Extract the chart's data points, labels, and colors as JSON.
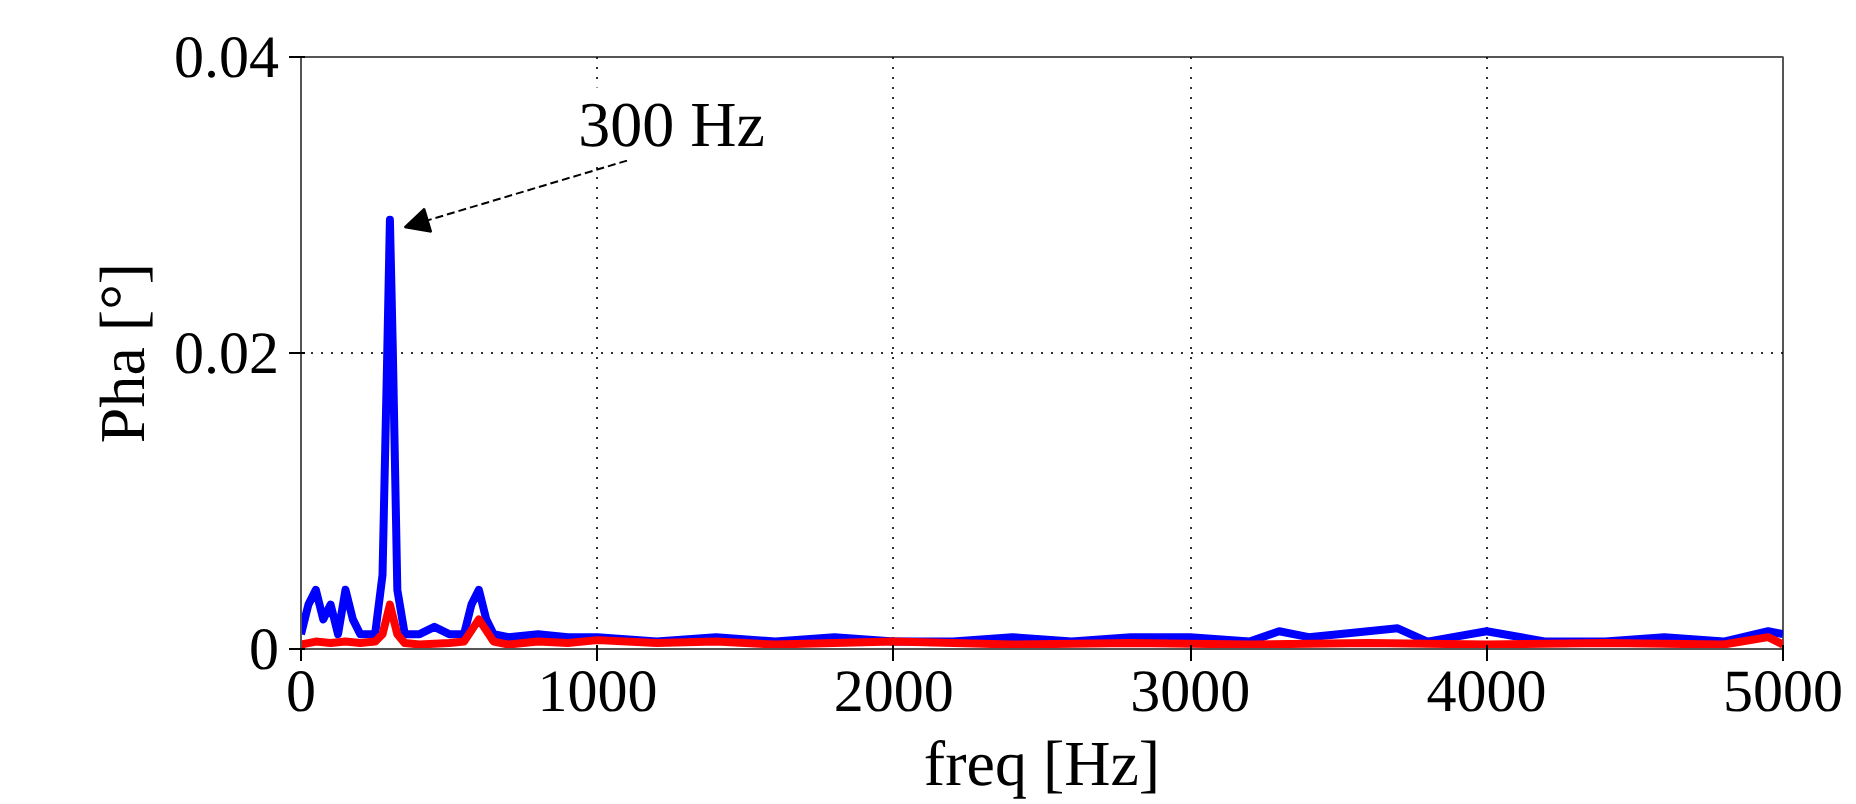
{
  "chart_data": {
    "type": "line",
    "xlabel": "freq [Hz]",
    "ylabel": "Pha [°]",
    "xlim": [
      0,
      5000
    ],
    "ylim": [
      0,
      0.04
    ],
    "xticks": [
      0,
      1000,
      2000,
      3000,
      4000,
      5000
    ],
    "yticks": [
      0,
      0.02,
      0.04
    ],
    "grid": true,
    "line_style": "solid",
    "marker": "none",
    "annotations": [
      {
        "text": "300 Hz",
        "x": 300,
        "y": 0.029
      }
    ],
    "series": [
      {
        "color": "#0000ff",
        "x": [
          0,
          25,
          50,
          75,
          100,
          125,
          150,
          175,
          200,
          225,
          250,
          275,
          290,
          300,
          310,
          325,
          350,
          400,
          450,
          500,
          550,
          575,
          600,
          625,
          650,
          700,
          800,
          900,
          1000,
          1200,
          1400,
          1600,
          1800,
          2000,
          2200,
          2400,
          2600,
          2800,
          3000,
          3200,
          3300,
          3400,
          3600,
          3700,
          3800,
          4000,
          4200,
          4400,
          4600,
          4800,
          4950,
          5000
        ],
        "values": [
          0.001,
          0.003,
          0.004,
          0.002,
          0.003,
          0.001,
          0.004,
          0.002,
          0.001,
          0.001,
          0.001,
          0.005,
          0.019,
          0.029,
          0.02,
          0.004,
          0.001,
          0.001,
          0.0015,
          0.001,
          0.001,
          0.003,
          0.004,
          0.002,
          0.001,
          0.0008,
          0.001,
          0.0008,
          0.0008,
          0.0005,
          0.0008,
          0.0005,
          0.0008,
          0.0005,
          0.0005,
          0.0008,
          0.0005,
          0.0008,
          0.0008,
          0.0005,
          0.0012,
          0.0008,
          0.0012,
          0.0014,
          0.0005,
          0.0012,
          0.0005,
          0.0005,
          0.0008,
          0.0005,
          0.0012,
          0.001
        ]
      },
      {
        "color": "#ff0000",
        "x": [
          0,
          50,
          100,
          150,
          200,
          250,
          275,
          300,
          325,
          350,
          400,
          500,
          550,
          600,
          650,
          700,
          800,
          900,
          1000,
          1200,
          1400,
          1600,
          1800,
          2000,
          2400,
          2800,
          3200,
          3600,
          4000,
          4400,
          4800,
          4950,
          5000
        ],
        "values": [
          0.0003,
          0.0005,
          0.0004,
          0.0005,
          0.0004,
          0.0005,
          0.001,
          0.003,
          0.001,
          0.0004,
          0.0003,
          0.0004,
          0.0005,
          0.002,
          0.0005,
          0.0003,
          0.0005,
          0.0004,
          0.0006,
          0.0004,
          0.0005,
          0.0003,
          0.0004,
          0.0005,
          0.0003,
          0.0004,
          0.0003,
          0.0004,
          0.0003,
          0.0004,
          0.0003,
          0.0008,
          0.0003
        ]
      }
    ]
  }
}
